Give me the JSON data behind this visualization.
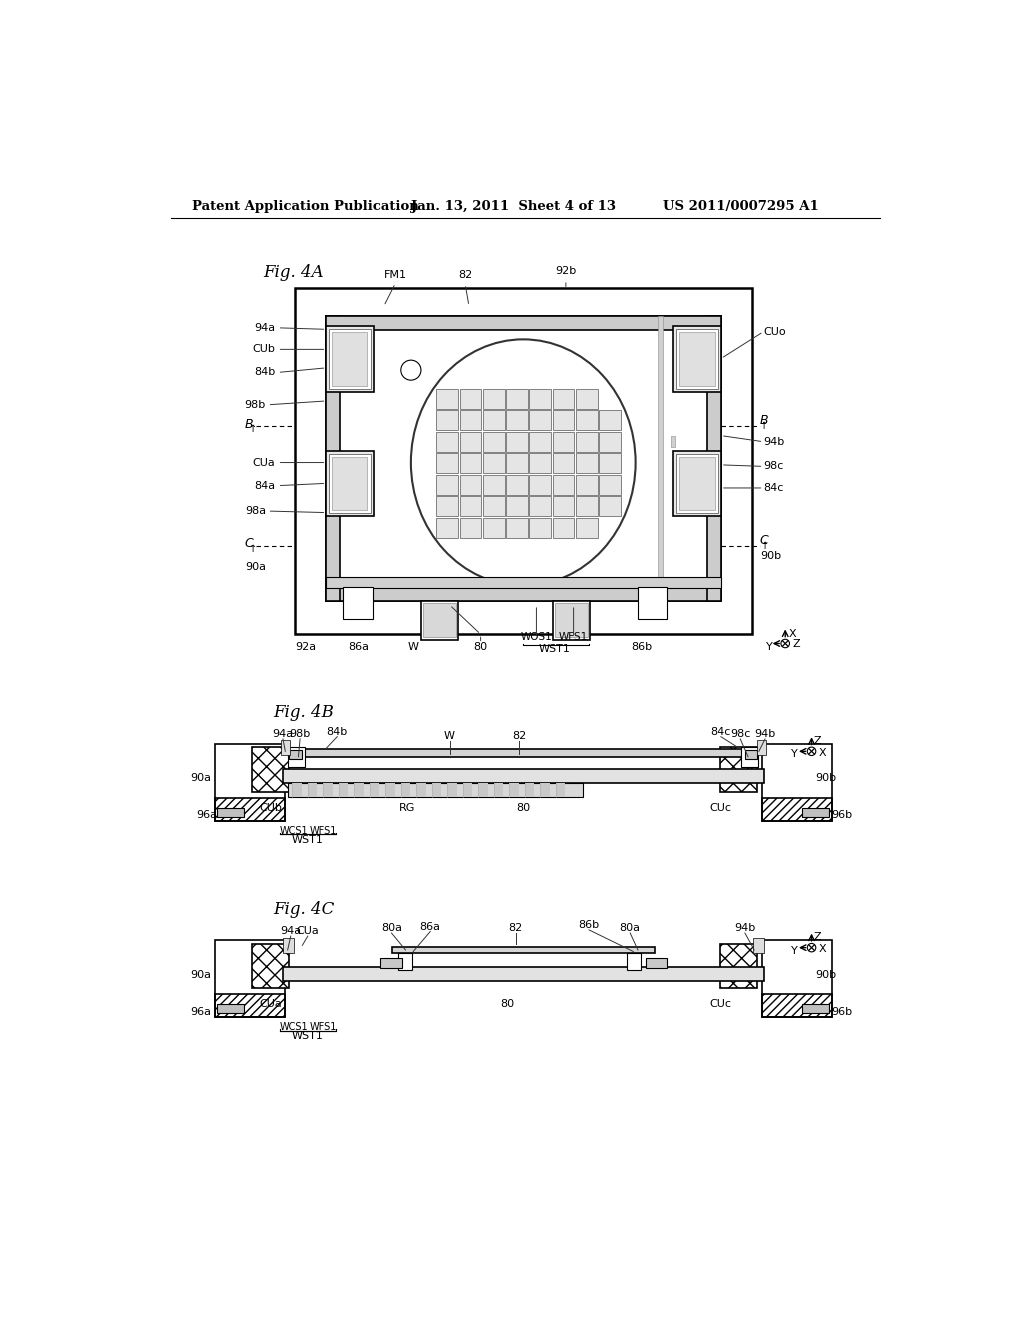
{
  "bg_color": "#ffffff",
  "header_left": "Patent Application Publication",
  "header_mid": "Jan. 13, 2011  Sheet 4 of 13",
  "header_right": "US 2011/0007295 A1"
}
